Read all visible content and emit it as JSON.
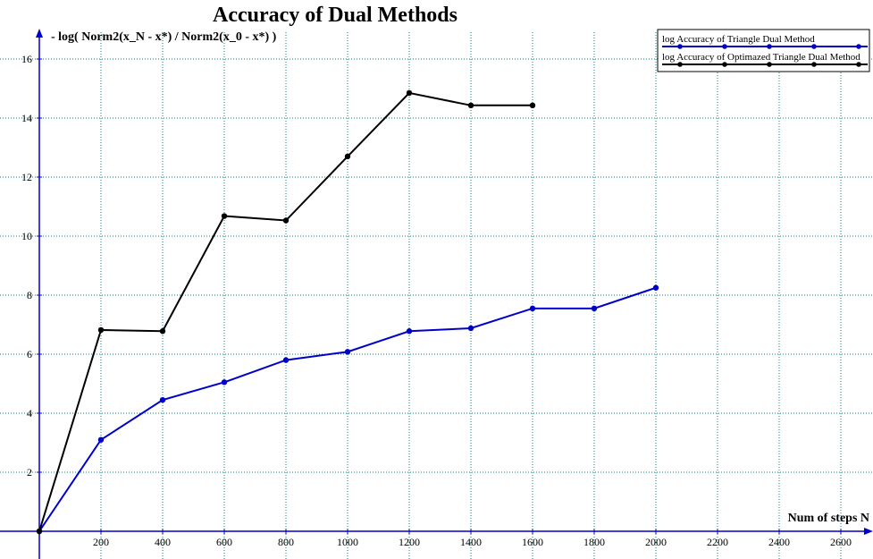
{
  "chart_data": {
    "type": "line",
    "title": "Accuracy of Dual Methods",
    "xlabel": "Num of steps N",
    "ylabel": "- log( Norm2(x_N - x*) / Norm2(x_0 - x*) )",
    "xlim": [
      0,
      2700
    ],
    "ylim": [
      0,
      16.6
    ],
    "x_ticks": [
      200,
      400,
      600,
      800,
      1000,
      1200,
      1400,
      1600,
      1800,
      2000,
      2200,
      2400,
      2600
    ],
    "y_ticks": [
      2,
      4,
      6,
      8,
      10,
      12,
      14,
      16
    ],
    "grid": true,
    "legend_position": "top-right",
    "series": [
      {
        "name": "log Accuracy of Triangle Dual Method",
        "color": "#0000cc",
        "x": [
          0,
          200,
          400,
          600,
          800,
          1000,
          1200,
          1400,
          1600,
          1800,
          2000
        ],
        "y": [
          0,
          3.1,
          4.45,
          5.05,
          5.8,
          6.08,
          6.78,
          6.88,
          7.55,
          7.55,
          8.25
        ]
      },
      {
        "name": "log Accuracy of Optimazed Triangle Dual Method",
        "color": "#000000",
        "x": [
          0,
          200,
          400,
          600,
          800,
          1000,
          1200,
          1400,
          1600
        ],
        "y": [
          0,
          6.82,
          6.78,
          10.68,
          10.53,
          12.7,
          14.85,
          14.43,
          14.43
        ]
      }
    ],
    "axis_color": "#0000cc",
    "grid_color": "#008080"
  }
}
